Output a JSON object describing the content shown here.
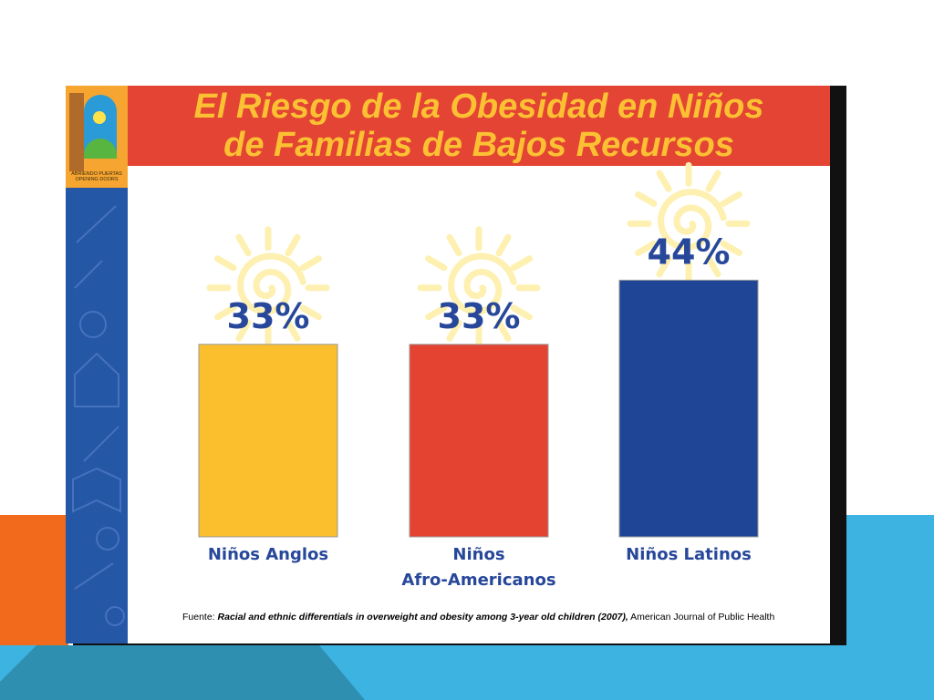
{
  "slide": {
    "title_line1": "El Riesgo de la Obesidad en Niños",
    "title_line2": "de Familias de Bajos Recursos",
    "logo_text_line1": "ABRIENDO PUERTAS",
    "logo_text_line2": "OPENING DOORS",
    "source_prefix": "Fuente: ",
    "source_title": "Racial and ethnic differentials in overweight and obesity among 3-year old children (2007),",
    "source_suffix": " American Journal of Public Health"
  },
  "colors": {
    "title_bar": "#e34433",
    "title_text": "#fcc133",
    "label_text": "#27479a",
    "sidebar": "#2557a7"
  },
  "chart_data": {
    "type": "bar",
    "categories": [
      [
        "Niños Anglos"
      ],
      [
        "Niños",
        "Afro-Americanos"
      ],
      [
        "Niños Latinos"
      ]
    ],
    "values": [
      33,
      33,
      44
    ],
    "value_labels": [
      "33%",
      "33%",
      "44%"
    ],
    "bar_colors": [
      "#fbbf2e",
      "#e44331",
      "#1f4596"
    ],
    "ylim": [
      0,
      50
    ],
    "grid": false,
    "legend": "none"
  }
}
